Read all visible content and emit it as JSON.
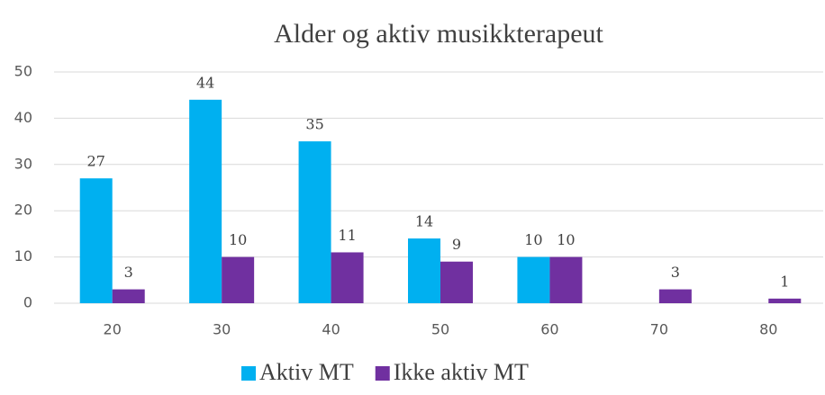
{
  "chart_data": {
    "type": "bar",
    "title": "Alder og aktiv musikkterapeut",
    "categories": [
      "20",
      "30",
      "40",
      "50",
      "60",
      "70",
      "80"
    ],
    "series": [
      {
        "name": "Aktiv MT",
        "color": "#00b0f0",
        "values": [
          27,
          44,
          35,
          14,
          10,
          null,
          null
        ]
      },
      {
        "name": "Ikke aktiv MT",
        "color": "#7030a0",
        "values": [
          3,
          10,
          11,
          9,
          10,
          3,
          1
        ]
      }
    ],
    "ylim": [
      0,
      50
    ],
    "yticks": [
      0,
      10,
      20,
      30,
      40,
      50
    ],
    "grid": true,
    "legend": "bottom"
  }
}
